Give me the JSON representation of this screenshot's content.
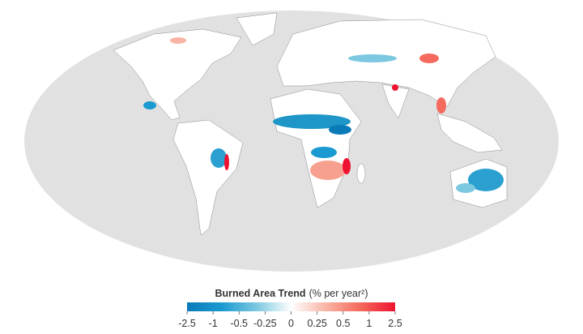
{
  "legend": {
    "title": "Burned Area Trend",
    "units": "(% per year²)",
    "ticks": [
      -2.5,
      -1,
      -0.5,
      -0.25,
      0,
      0.25,
      0.5,
      1,
      2.5
    ],
    "colors": [
      "#0a7ab8",
      "#1a9ad0",
      "#7cc8e0",
      "#ffffff",
      "#f9b4a6",
      "#f46a5c",
      "#ee1230"
    ]
  }
}
